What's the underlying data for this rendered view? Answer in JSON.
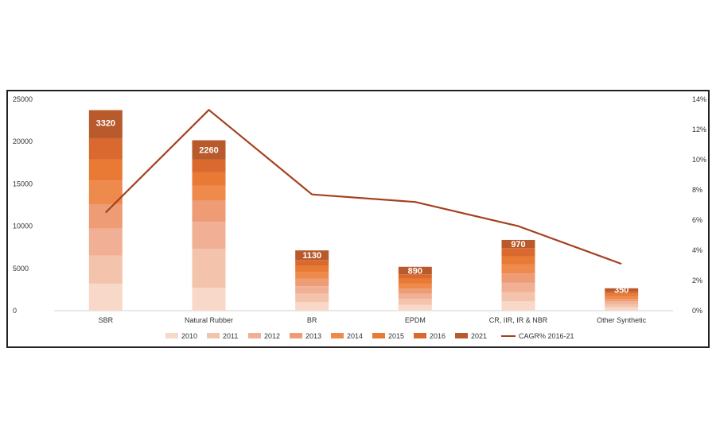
{
  "chart_data": {
    "type": "bar",
    "subtype": "stacked-bar-with-line",
    "categories": [
      "SBR",
      "Natural Rubber",
      "BR",
      "EPDM",
      "CR, IIR, IR & NBR",
      "Other Synthetic"
    ],
    "series": [
      {
        "name": "2010",
        "color": "#f8d8c8",
        "values": [
          3200,
          2700,
          1000,
          700,
          1100,
          400
        ]
      },
      {
        "name": "2011",
        "color": "#f4c3ac",
        "values": [
          3300,
          4600,
          1000,
          700,
          1100,
          400
        ]
      },
      {
        "name": "2012",
        "color": "#f1b095",
        "values": [
          3200,
          3200,
          900,
          600,
          1100,
          300
        ]
      },
      {
        "name": "2013",
        "color": "#ee9c76",
        "values": [
          2900,
          2500,
          900,
          600,
          1100,
          300
        ]
      },
      {
        "name": "2014",
        "color": "#ee8a4c",
        "values": [
          2800,
          1800,
          800,
          600,
          1100,
          300
        ]
      },
      {
        "name": "2015",
        "color": "#e97a35",
        "values": [
          2500,
          1600,
          700,
          600,
          900,
          300
        ]
      },
      {
        "name": "2016",
        "color": "#d9692e",
        "values": [
          2500,
          1500,
          700,
          500,
          1000,
          300
        ]
      },
      {
        "name": "2021",
        "color": "#b95a2c",
        "values": [
          3320,
          2260,
          1130,
          890,
          970,
          350
        ]
      }
    ],
    "data_labels": [
      "3320",
      "2260",
      "1130",
      "890",
      "970",
      "350"
    ],
    "line_series": {
      "name": "CAGR% 2016-21",
      "color": "#a5401f",
      "values": [
        6.5,
        13.3,
        7.7,
        7.2,
        5.6,
        3.1
      ]
    },
    "y_left": {
      "min": 0,
      "max": 25000,
      "ticks": [
        "0",
        "5000",
        "10000",
        "15000",
        "20000",
        "25000"
      ]
    },
    "y_right": {
      "min": 0,
      "max": 14,
      "ticks": [
        "0%",
        "2%",
        "4%",
        "6%",
        "8%",
        "10%",
        "12%",
        "14%"
      ]
    },
    "title": "",
    "xlabel": "",
    "ylabel": "",
    "legend_position": "bottom"
  }
}
